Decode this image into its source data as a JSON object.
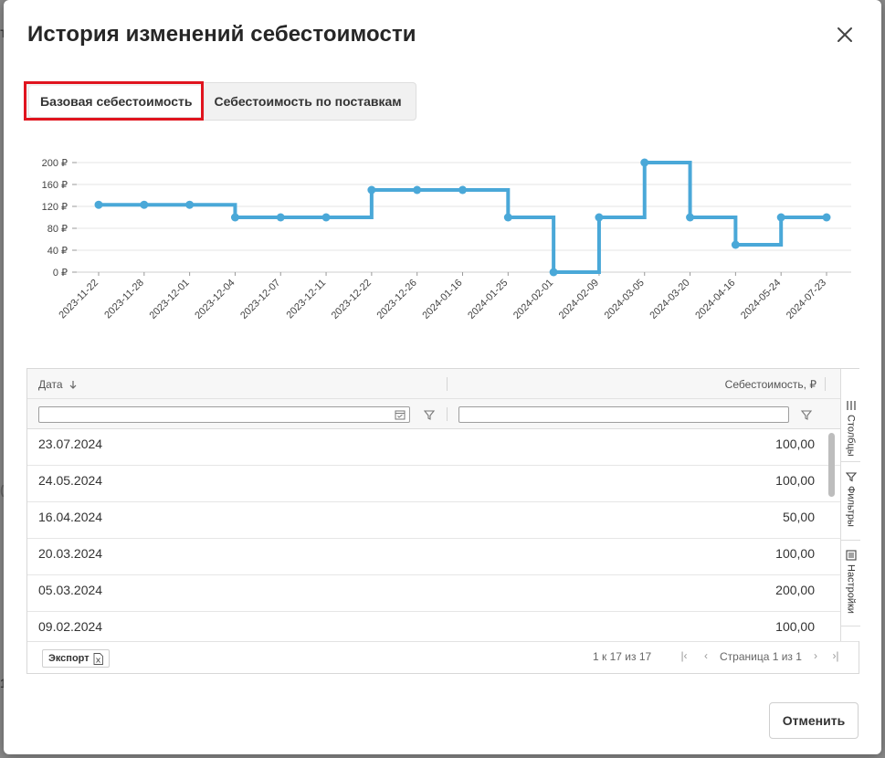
{
  "dialog": {
    "title": "История изменений себестоимости",
    "close_icon": "close-icon"
  },
  "tabs": [
    {
      "label": "Базовая себестоимость",
      "active": true
    },
    {
      "label": "Себестоимость по поставкам",
      "active": false
    }
  ],
  "chart_data": {
    "type": "line",
    "step": true,
    "color": "#4aa8d8",
    "x": [
      "2023-11-22",
      "2023-11-28",
      "2023-12-01",
      "2023-12-04",
      "2023-12-07",
      "2023-12-11",
      "2023-12-22",
      "2023-12-26",
      "2024-01-16",
      "2024-01-25",
      "2024-02-01",
      "2024-02-09",
      "2024-03-05",
      "2024-03-20",
      "2024-04-16",
      "2024-05-24",
      "2024-07-23"
    ],
    "values": [
      123,
      123,
      123,
      100,
      100,
      100,
      150,
      150,
      150,
      100,
      0,
      100,
      200,
      100,
      50,
      100,
      100
    ],
    "yticks": [
      "0 ₽",
      "40 ₽",
      "80 ₽",
      "120 ₽",
      "160 ₽",
      "200 ₽"
    ],
    "ylim": [
      0,
      200
    ],
    "grid": true
  },
  "table": {
    "columns": {
      "date": "Дата",
      "cost": "Себестоимость, ₽"
    },
    "sort_icon": "arrow-down-icon",
    "rows": [
      {
        "date": "23.07.2024",
        "cost": "100,00"
      },
      {
        "date": "24.05.2024",
        "cost": "100,00"
      },
      {
        "date": "16.04.2024",
        "cost": "50,00"
      },
      {
        "date": "20.03.2024",
        "cost": "100,00"
      },
      {
        "date": "05.03.2024",
        "cost": "200,00"
      },
      {
        "date": "09.02.2024",
        "cost": "100,00"
      }
    ],
    "side_tabs": {
      "columns": "Столбцы",
      "filters": "Фильтры",
      "settings": "Настройки"
    },
    "footer": {
      "export_label": "Экспорт",
      "range_text": "1 к 17 из 17",
      "page_text": "Страница 1 из 1"
    }
  },
  "buttons": {
    "cancel": "Отменить"
  }
}
